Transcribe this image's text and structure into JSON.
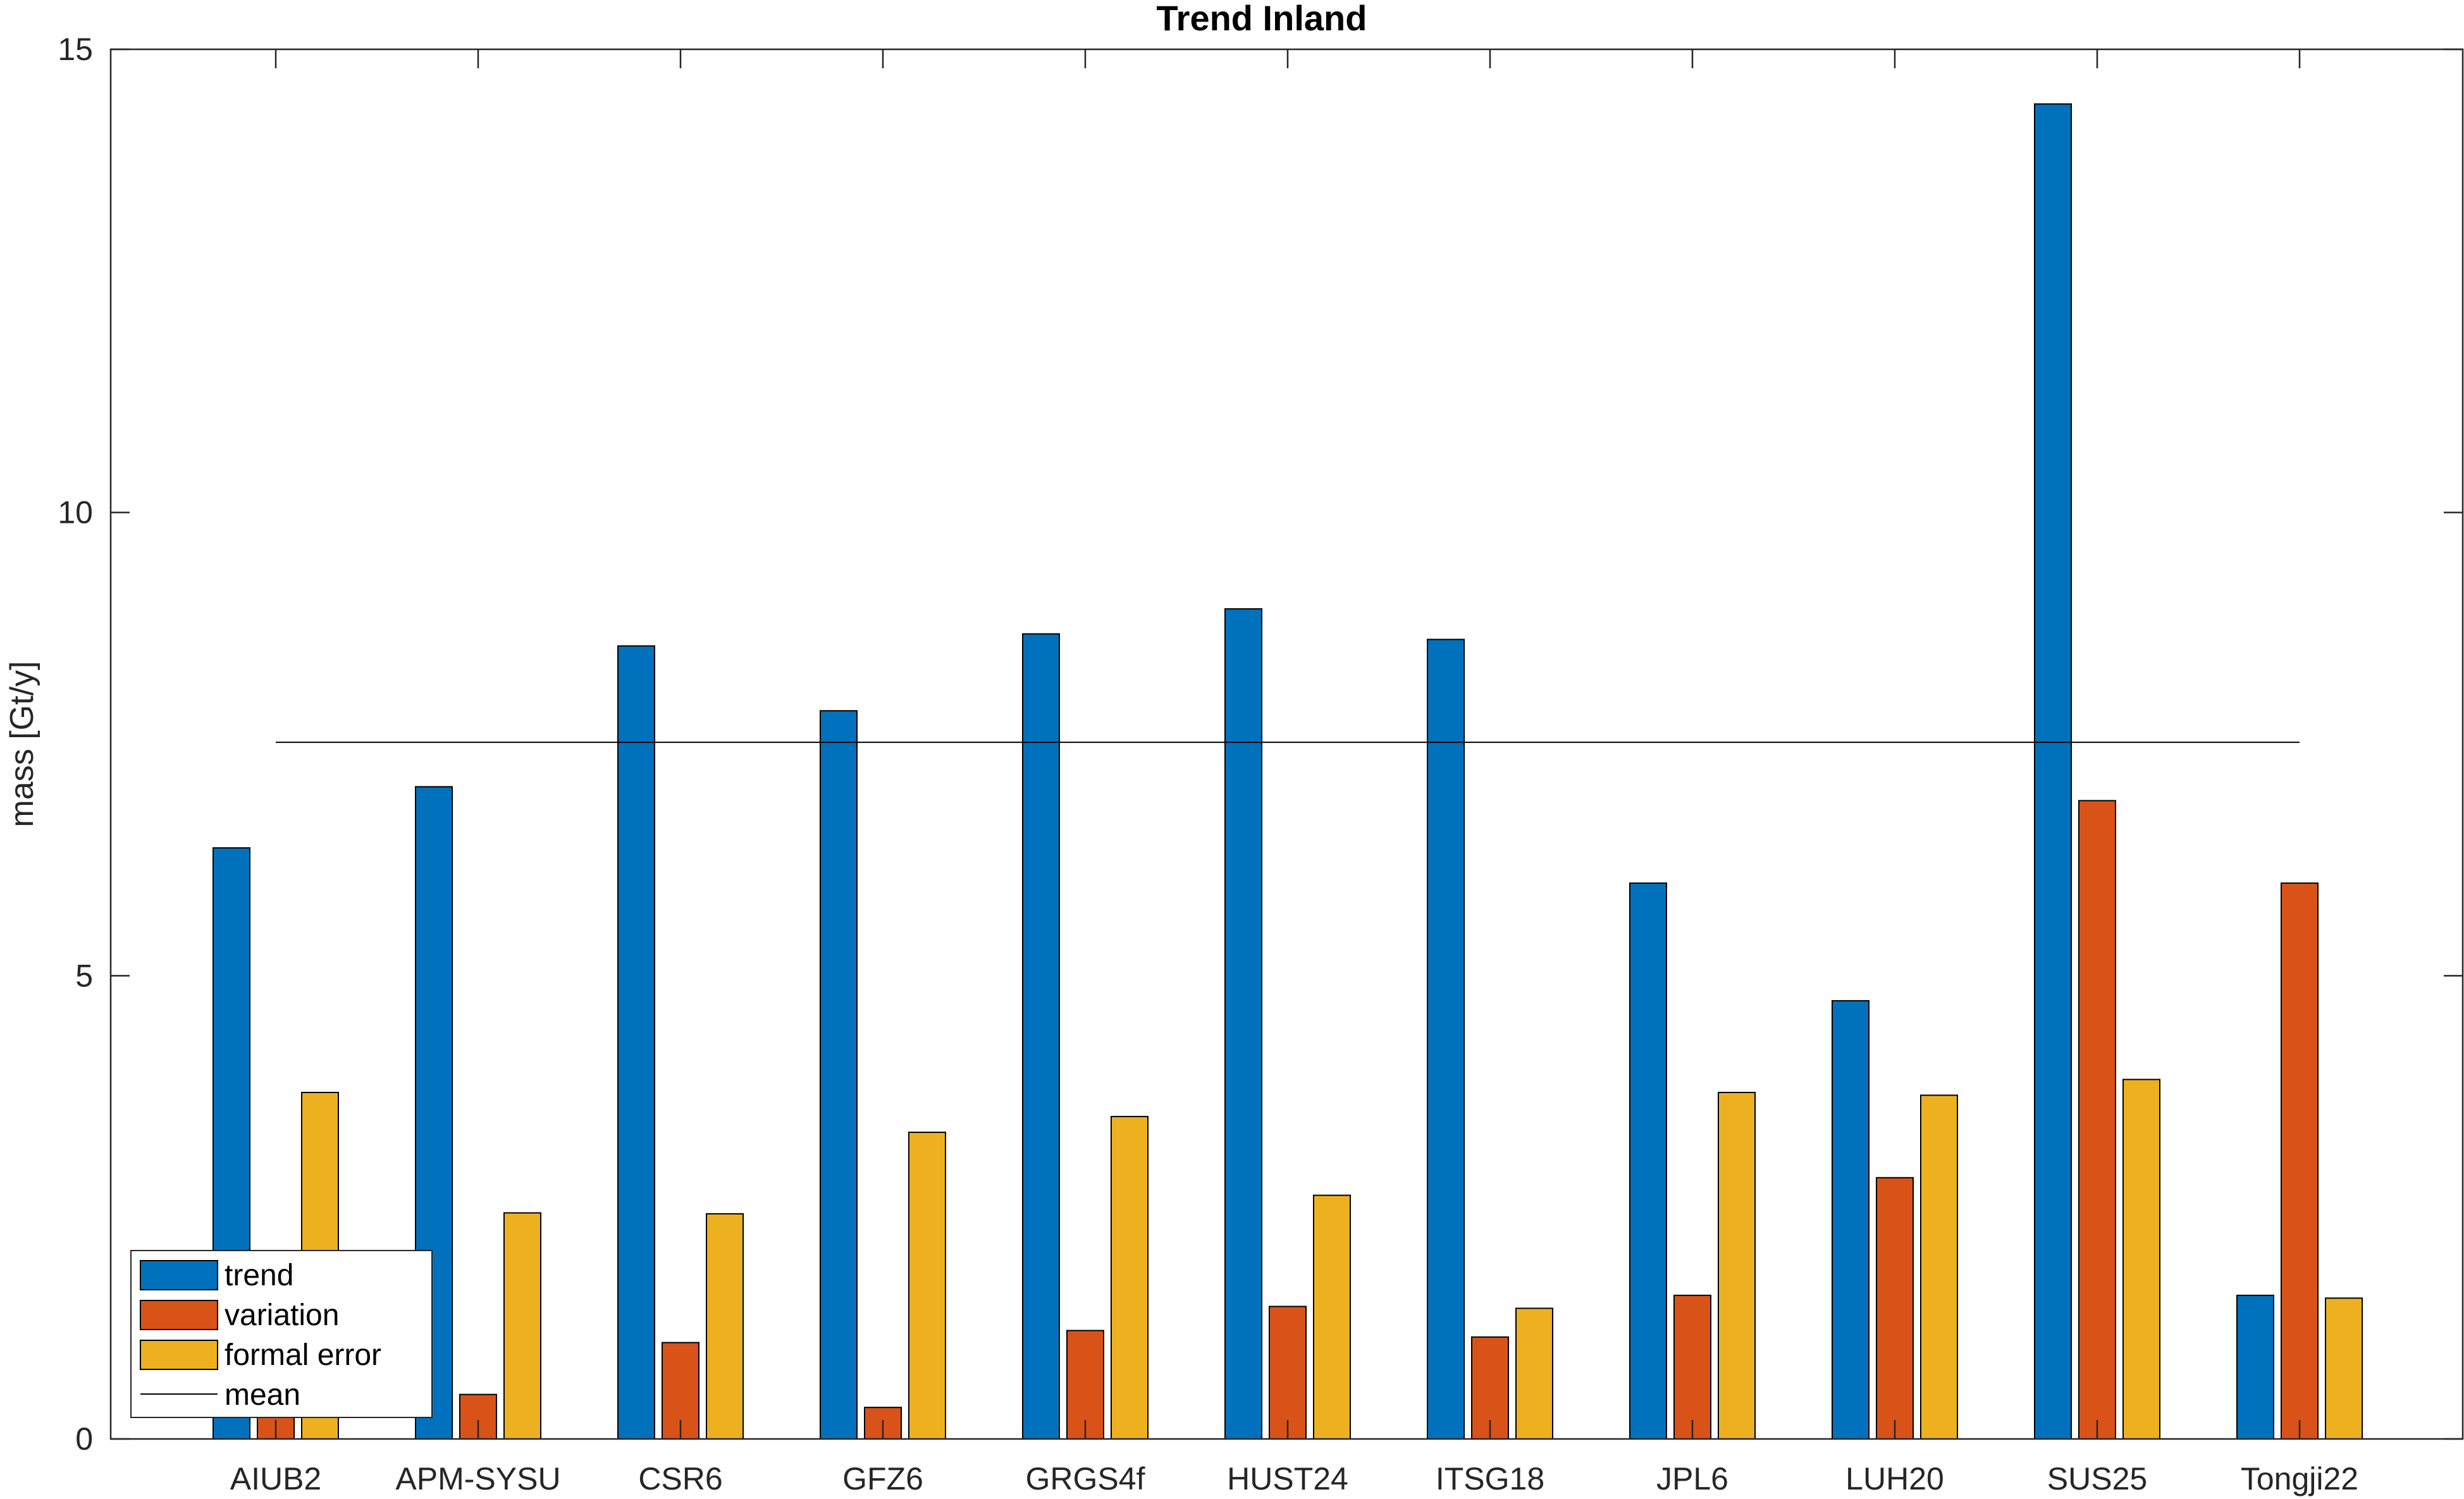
{
  "chart_data": {
    "type": "bar",
    "title": "Trend Inland",
    "xlabel": "",
    "ylabel": "mass [Gt/y]",
    "ylim": [
      0,
      15
    ],
    "yticks": [
      0,
      5,
      10,
      15
    ],
    "grid": false,
    "legend_placement": "bottom-left",
    "categories": [
      "AIUB2",
      "APM-SYSU",
      "CSR6",
      "GFZ6",
      "GRGS4f",
      "HUST24",
      "ITSG18",
      "JPL6",
      "LUH20",
      "SUS25",
      "Tongji22"
    ],
    "series": [
      {
        "name": "trend",
        "color": "#0072BD",
        "values": [
          6.38,
          7.04,
          8.56,
          7.86,
          8.69,
          8.96,
          8.63,
          6.0,
          4.73,
          14.41,
          1.55
        ]
      },
      {
        "name": "variation",
        "color": "#D95319",
        "values": [
          1.8,
          0.48,
          1.04,
          0.34,
          1.17,
          1.43,
          1.1,
          1.55,
          2.82,
          6.89,
          6.0
        ]
      },
      {
        "name": "formal error",
        "color": "#EDB120",
        "values": [
          3.74,
          2.44,
          2.43,
          3.31,
          3.48,
          2.63,
          1.41,
          3.74,
          3.71,
          3.88,
          1.52
        ]
      }
    ],
    "mean": {
      "name": "mean",
      "value": 7.52,
      "color": "#000000"
    }
  }
}
